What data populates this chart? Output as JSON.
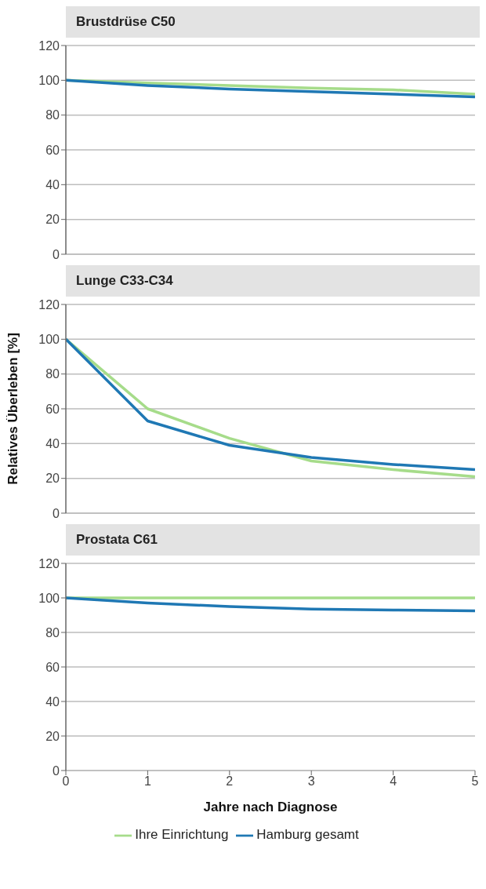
{
  "chart_data": [
    {
      "type": "line",
      "title": "Brustdrüse C50",
      "x": [
        0,
        1,
        2,
        3,
        4,
        5
      ],
      "xlim": [
        0,
        5
      ],
      "xticks": [
        0,
        1,
        2,
        3,
        4,
        5
      ],
      "ylim": [
        0,
        120
      ],
      "yticks": [
        0,
        20,
        40,
        60,
        80,
        100,
        120
      ],
      "grid": "y",
      "tick_labels": "y",
      "series": [
        {
          "color": "#a6dc8a",
          "values": [
            100,
            98.5,
            97,
            95.5,
            94.5,
            92
          ]
        },
        {
          "color": "#1f78b4",
          "values": [
            100,
            97,
            95,
            93.5,
            92,
            90.5
          ]
        }
      ]
    },
    {
      "type": "line",
      "title": "Lunge C33-C34",
      "ylabel": "Relatives Überleben [%]",
      "x": [
        0,
        1,
        2,
        3,
        4,
        5
      ],
      "xlim": [
        0,
        5
      ],
      "xticks": [
        0,
        1,
        2,
        3,
        4,
        5
      ],
      "ylim": [
        0,
        120
      ],
      "yticks": [
        0,
        20,
        40,
        60,
        80,
        100,
        120
      ],
      "grid": "y",
      "tick_labels": "y",
      "series": [
        {
          "color": "#a6dc8a",
          "values": [
            100,
            60,
            43,
            30,
            25,
            21
          ]
        },
        {
          "color": "#1f78b4",
          "values": [
            100,
            53,
            39,
            32,
            28,
            25
          ]
        }
      ]
    },
    {
      "type": "line",
      "title": "Prostata C61",
      "xlabel": "Jahre nach Diagnose",
      "x": [
        0,
        1,
        2,
        3,
        4,
        5
      ],
      "xlim": [
        0,
        5
      ],
      "xticks": [
        0,
        1,
        2,
        3,
        4,
        5
      ],
      "ylim": [
        0,
        120
      ],
      "yticks": [
        0,
        20,
        40,
        60,
        80,
        100,
        120
      ],
      "grid": "y",
      "legend": "bottom",
      "series": [
        {
          "name": "Ihre Einrichtung",
          "color": "#a6dc8a",
          "values": [
            100,
            100,
            100,
            100,
            100,
            100
          ]
        },
        {
          "name": "Hamburg gesamt",
          "color": "#1f78b4",
          "values": [
            100,
            97,
            95,
            93.5,
            93,
            92.5
          ]
        }
      ]
    }
  ]
}
